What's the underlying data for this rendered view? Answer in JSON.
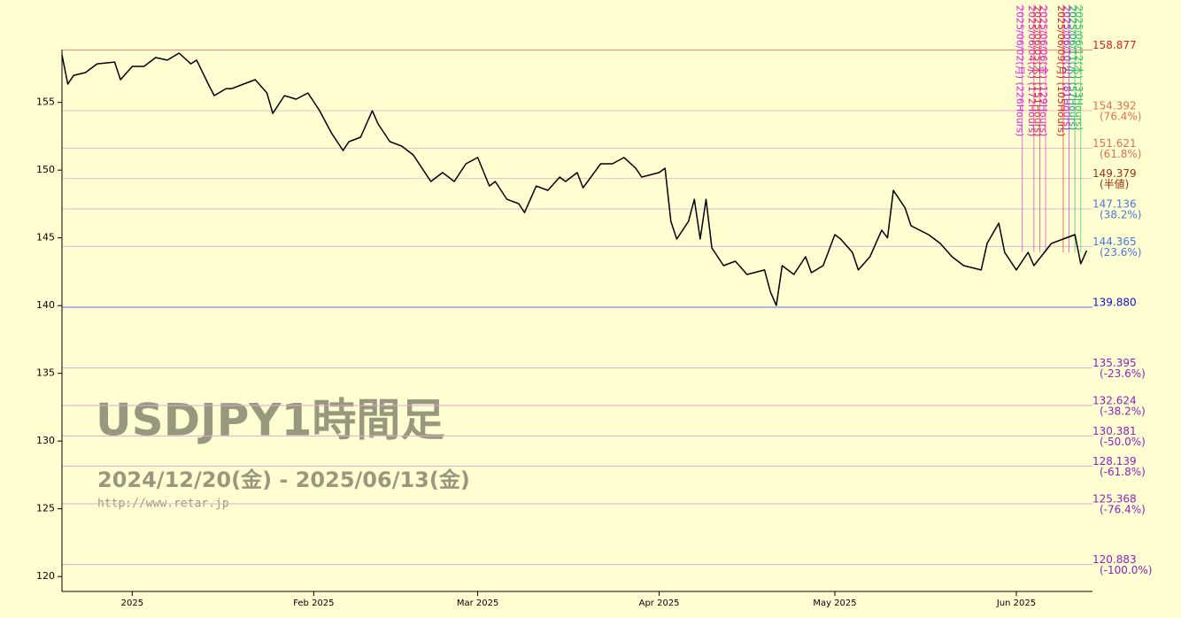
{
  "chart_data": {
    "type": "line",
    "title": "USDJPY1時間足",
    "subtitle": "2024/12/20(金) - 2025/06/13(金)",
    "source": "http://www.retar.jp",
    "color": "#000000",
    "x": [
      "2024-12-20",
      "2024-12-21",
      "2024-12-22",
      "2024-12-24",
      "2024-12-26",
      "2024-12-29",
      "2024-12-30",
      "2025-01-01",
      "2025-01-03",
      "2025-01-05",
      "2025-01-07",
      "2025-01-09",
      "2025-01-11",
      "2025-01-12",
      "2025-01-14",
      "2025-01-15",
      "2025-01-17",
      "2025-01-18",
      "2025-01-20",
      "2025-01-22",
      "2025-01-24",
      "2025-01-25",
      "2025-01-27",
      "2025-01-29",
      "2025-01-31",
      "2025-02-02",
      "2025-02-04",
      "2025-02-06",
      "2025-02-07",
      "2025-02-09",
      "2025-02-11",
      "2025-02-12",
      "2025-02-14",
      "2025-02-16",
      "2025-02-18",
      "2025-02-20",
      "2025-02-21",
      "2025-02-23",
      "2025-02-25",
      "2025-02-27",
      "2025-03-01",
      "2025-03-03",
      "2025-03-04",
      "2025-03-06",
      "2025-03-08",
      "2025-03-09",
      "2025-03-11",
      "2025-03-13",
      "2025-03-15",
      "2025-03-16",
      "2025-03-18",
      "2025-03-19",
      "2025-03-22",
      "2025-03-24",
      "2025-03-26",
      "2025-03-28",
      "2025-03-29",
      "2025-04-01",
      "2025-04-02",
      "2025-04-03",
      "2025-04-04",
      "2025-04-06",
      "2025-04-07",
      "2025-04-08",
      "2025-04-09",
      "2025-04-10",
      "2025-04-12",
      "2025-04-14",
      "2025-04-16",
      "2025-04-19",
      "2025-04-20",
      "2025-04-21",
      "2025-04-22",
      "2025-04-24",
      "2025-04-26",
      "2025-04-27",
      "2025-04-29",
      "2025-05-01",
      "2025-05-02",
      "2025-05-04",
      "2025-05-05",
      "2025-05-07",
      "2025-05-09",
      "2025-05-10",
      "2025-05-11",
      "2025-05-13",
      "2025-05-14",
      "2025-05-17",
      "2025-05-19",
      "2025-05-21",
      "2025-05-23",
      "2025-05-26",
      "2025-05-27",
      "2025-05-29",
      "2025-05-30",
      "2025-06-01",
      "2025-06-03",
      "2025-06-04",
      "2025-06-07",
      "2025-06-09",
      "2025-06-11",
      "2025-06-12",
      "2025-06-13"
    ],
    "values": [
      158.51,
      156.35,
      157.0,
      157.2,
      157.85,
      157.98,
      156.68,
      157.66,
      157.66,
      158.31,
      158.12,
      158.64,
      157.85,
      158.12,
      156.35,
      155.5,
      156.02,
      156.02,
      156.35,
      156.68,
      155.7,
      154.19,
      155.5,
      155.24,
      155.7,
      154.39,
      152.76,
      151.45,
      152.1,
      152.43,
      154.39,
      153.41,
      152.1,
      151.78,
      151.12,
      149.82,
      149.16,
      149.82,
      149.16,
      150.47,
      150.93,
      148.83,
      149.16,
      147.85,
      147.53,
      146.87,
      148.83,
      148.51,
      149.49,
      149.16,
      149.82,
      148.7,
      150.47,
      150.47,
      150.93,
      150.14,
      149.49,
      149.82,
      150.14,
      146.22,
      144.91,
      146.22,
      147.85,
      144.91,
      147.85,
      144.25,
      142.95,
      143.28,
      142.3,
      142.63,
      141.0,
      140.01,
      142.95,
      142.3,
      143.61,
      142.43,
      142.95,
      145.24,
      144.91,
      143.93,
      142.63,
      143.61,
      145.57,
      145.0,
      148.51,
      147.2,
      145.9,
      145.24,
      144.59,
      143.61,
      142.95,
      142.63,
      144.59,
      146.09,
      143.93,
      142.63,
      143.93,
      142.95,
      144.59,
      144.91,
      145.24,
      143.08,
      144.06
    ],
    "xlim": [
      "2024-12-20",
      "2025-06-14"
    ],
    "xticks": [
      {
        "value": "2025-01-01",
        "label": "2025"
      },
      {
        "value": "2025-02-01",
        "label": "Feb 2025"
      },
      {
        "value": "2025-03-01",
        "label": "Mar 2025"
      },
      {
        "value": "2025-04-01",
        "label": "Apr 2025"
      },
      {
        "value": "2025-05-01",
        "label": "May 2025"
      },
      {
        "value": "2025-06-01",
        "label": "Jun 2025"
      }
    ],
    "ylim": [
      118.9,
      158.9
    ],
    "yticks": [
      120,
      125,
      130,
      135,
      140,
      145,
      150,
      155
    ],
    "levels": [
      {
        "value": 158.877,
        "label": "158.877",
        "color": "#e02020",
        "line": "#f08080"
      },
      {
        "value": 154.392,
        "label": "154.392",
        "note": "(76.4%)",
        "color": "#e07050",
        "line": "#f0b8c8"
      },
      {
        "value": 151.621,
        "label": "151.621",
        "note": "(61.8%)",
        "color": "#e07050",
        "line": "#f0b8c8"
      },
      {
        "value": 149.379,
        "label": "149.379",
        "note": "(半値)",
        "color": "#a03010",
        "line": "#f0b8c8"
      },
      {
        "value": 147.136,
        "label": "147.136",
        "note": "(38.2%)",
        "color": "#4a78e0",
        "line": "#d8b8e0"
      },
      {
        "value": 144.365,
        "label": "144.365",
        "note": "(23.6%)",
        "color": "#4a78e0",
        "line": "#d8b8e0"
      },
      {
        "value": 139.88,
        "label": "139.880",
        "color": "#1010e0",
        "line": "#6070f0"
      },
      {
        "value": 135.395,
        "label": "135.395",
        "note": "(-23.6%)",
        "color": "#9020c0",
        "line": "#e0a8d8"
      },
      {
        "value": 132.624,
        "label": "132.624",
        "note": "(-38.2%)",
        "color": "#9020c0",
        "line": "#e0a8d8"
      },
      {
        "value": 130.381,
        "label": "130.381",
        "note": "(-50.0%)",
        "color": "#9020c0",
        "line": "#e0a8d8"
      },
      {
        "value": 128.139,
        "label": "128.139",
        "note": "(-61.8%)",
        "color": "#9020c0",
        "line": "#e0a8d8"
      },
      {
        "value": 125.368,
        "label": "125.368",
        "note": "(-76.4%)",
        "color": "#9020c0",
        "line": "#e0a8d8"
      },
      {
        "value": 120.883,
        "label": "120.883",
        "note": "(-100.0%)",
        "color": "#9020c0",
        "line": "#e0a8d8"
      }
    ],
    "events": [
      {
        "date": "2025-06-02",
        "label": "2025/06/02(月) (226Hours)",
        "color": "#e020e0"
      },
      {
        "date": "2025-06-04",
        "label": "2025/06/04(水) (172Hours)",
        "color": "#e020a0"
      },
      {
        "date": "2025-06-05",
        "label": "2025/06/05(木) (151Hours)",
        "color": "#e02060"
      },
      {
        "date": "2025-06-06",
        "label": "2025/06/06(金) (129Hours)",
        "color": "#e020c0"
      },
      {
        "date": "2025-06-09",
        "label": "2025/06/09(月) (105Hours)",
        "color": "#e02020"
      },
      {
        "date": "2025-06-10",
        "label": "2025/06/10(火) (81Hours)",
        "color": "#c020e0"
      },
      {
        "date": "2025-06-11",
        "label": "2025/06/11(水) (57Hours)",
        "color": "#20a080"
      },
      {
        "date": "2025-06-12",
        "label": "2025/06/12(木) (33Hours)",
        "color": "#20c060"
      }
    ]
  }
}
